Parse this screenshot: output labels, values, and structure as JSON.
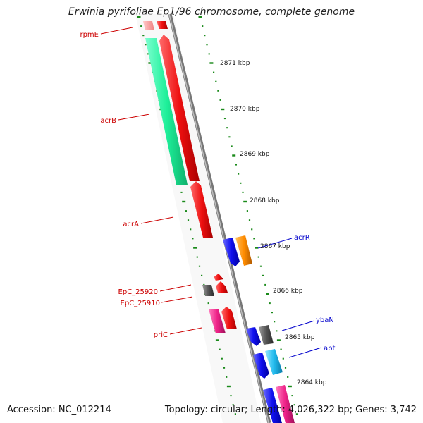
{
  "title": "Erwinia pyrifoliae Ep1/96 chromosome, complete genome",
  "accession": "Accession: NC_012214",
  "summary": "Topology: circular; Length: 4,026,322 bp; Genes: 3,742",
  "ruler_labels": [
    "2871 kbp",
    "2870 kbp",
    "2869 kbp",
    "2868 kbp",
    "2867 kbp",
    "2866 kbp",
    "2865 kbp",
    "2864 kbp"
  ],
  "gene_labels_left": [
    "rpmE",
    "acrB",
    "acrA",
    "EpC_25920",
    "EpC_25910",
    "priC"
  ],
  "gene_labels_right": [
    "acrR",
    "ybaN",
    "apt"
  ],
  "colors": {
    "backbone": "#8a8a8a",
    "tick": "#1a8a1a",
    "red_label": "#cc0000",
    "blue_label": "#0000cc",
    "green_gene": "#22ee99",
    "red_gene": "#ee1111",
    "blue_gene": "#1111ee",
    "orange_gene": "#ff8c00",
    "cyan_gene": "#22bbee",
    "pink_gene": "#ee2288",
    "gray_gene": "#555555"
  }
}
